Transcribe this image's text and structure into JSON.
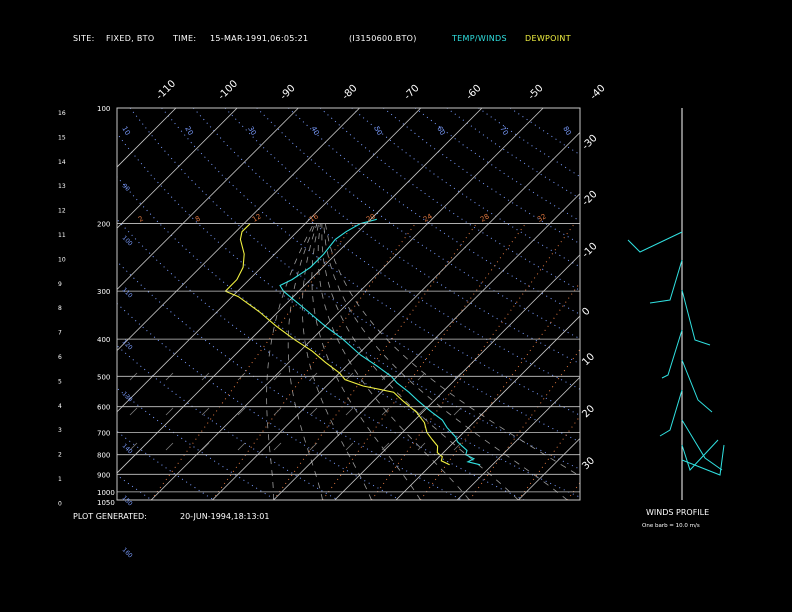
{
  "header": {
    "site_label": "SITE:",
    "site_value": "FIXED, BTO",
    "time_label": "TIME:",
    "time_value": "15-MAR-1991,06:05:21",
    "file_value": "(I3150600.BTO)",
    "legend_temp": "TEMP/WINDS",
    "legend_dew": "DEWPOINT"
  },
  "footer": {
    "generated_label": "PLOT GENERATED:",
    "generated_value": "20-JUN-1994,18:13:01",
    "winds_title": "WINDS PROFILE",
    "barb_note": "One barb = 10.0 m/s"
  },
  "colors": {
    "background": "#000000",
    "grid": "#c8c8c8",
    "temperature": "#30e0e0",
    "dewpoint": "#f0f040",
    "dry_adiabat": "#7a9cff",
    "mixing_ratio": "#e07840",
    "wind": "#30e0e0"
  },
  "chart_data": {
    "type": "line",
    "pressure_labels": [
      "100",
      "200",
      "300",
      "400",
      "500",
      "600",
      "700",
      "800",
      "900",
      "1000",
      "1050"
    ],
    "height_labels": [
      "16",
      "15",
      "14",
      "13",
      "12",
      "11",
      "10",
      "9",
      "8",
      "7",
      "6",
      "5",
      "4",
      "3",
      "2",
      "1",
      "0"
    ],
    "top_temp_labels": [
      "-110",
      "-100",
      "-90",
      "-80",
      "-70",
      "-60",
      "-50",
      "-40"
    ],
    "right_temp_labels": [
      "-30",
      "-20",
      "-10",
      "0",
      "10",
      "20",
      "30"
    ],
    "mixing_ratio_labels": [
      "2",
      "8",
      "12",
      "16",
      "20",
      "24",
      "28",
      "32"
    ],
    "adiabat_labels": [
      "10",
      "20",
      "30",
      "40",
      "50",
      "60",
      "70",
      "80",
      "90",
      "100",
      "110",
      "120",
      "130",
      "140",
      "150",
      "160"
    ],
    "temperature_series": {
      "name": "TEMP/WINDS",
      "points": [
        {
          "p": 850,
          "t": 8.0
        },
        {
          "p": 835,
          "t": 5.5
        },
        {
          "p": 820,
          "t": 6.0
        },
        {
          "p": 800,
          "t": 4.0
        },
        {
          "p": 780,
          "t": 3.5
        },
        {
          "p": 760,
          "t": 2.0
        },
        {
          "p": 740,
          "t": 0.5
        },
        {
          "p": 720,
          "t": -0.5
        },
        {
          "p": 700,
          "t": -2.0
        },
        {
          "p": 680,
          "t": -3.5
        },
        {
          "p": 650,
          "t": -5.5
        },
        {
          "p": 620,
          "t": -8.5
        },
        {
          "p": 600,
          "t": -10.5
        },
        {
          "p": 580,
          "t": -12.5
        },
        {
          "p": 550,
          "t": -15.5
        },
        {
          "p": 520,
          "t": -19.0
        },
        {
          "p": 500,
          "t": -21.0
        },
        {
          "p": 470,
          "t": -25.0
        },
        {
          "p": 440,
          "t": -29.5
        },
        {
          "p": 400,
          "t": -35.0
        },
        {
          "p": 370,
          "t": -40.0
        },
        {
          "p": 340,
          "t": -45.0
        },
        {
          "p": 300,
          "t": -52.5
        },
        {
          "p": 290,
          "t": -54.0
        },
        {
          "p": 280,
          "t": -53.0
        },
        {
          "p": 260,
          "t": -52.0
        },
        {
          "p": 240,
          "t": -52.0
        },
        {
          "p": 220,
          "t": -52.5
        },
        {
          "p": 210,
          "t": -52.0
        },
        {
          "p": 200,
          "t": -51.0
        },
        {
          "p": 195,
          "t": -49.0
        }
      ]
    },
    "dewpoint_series": {
      "name": "DEWPOINT",
      "points": [
        {
          "p": 850,
          "t": 3.0
        },
        {
          "p": 830,
          "t": 1.0
        },
        {
          "p": 810,
          "t": 0.5
        },
        {
          "p": 790,
          "t": -1.0
        },
        {
          "p": 760,
          "t": -2.0
        },
        {
          "p": 730,
          "t": -4.0
        },
        {
          "p": 700,
          "t": -6.0
        },
        {
          "p": 660,
          "t": -8.0
        },
        {
          "p": 620,
          "t": -11.0
        },
        {
          "p": 580,
          "t": -15.0
        },
        {
          "p": 550,
          "t": -18.0
        },
        {
          "p": 530,
          "t": -24.0
        },
        {
          "p": 510,
          "t": -28.0
        },
        {
          "p": 490,
          "t": -30.0
        },
        {
          "p": 460,
          "t": -34.0
        },
        {
          "p": 430,
          "t": -38.0
        },
        {
          "p": 400,
          "t": -43.0
        },
        {
          "p": 370,
          "t": -48.0
        },
        {
          "p": 340,
          "t": -53.0
        },
        {
          "p": 310,
          "t": -59.0
        },
        {
          "p": 300,
          "t": -62.0
        },
        {
          "p": 280,
          "t": -62.0
        },
        {
          "p": 260,
          "t": -63.0
        },
        {
          "p": 240,
          "t": -65.0
        },
        {
          "p": 220,
          "t": -68.0
        },
        {
          "p": 210,
          "t": -69.0
        },
        {
          "p": 200,
          "t": -69.0
        }
      ]
    }
  }
}
